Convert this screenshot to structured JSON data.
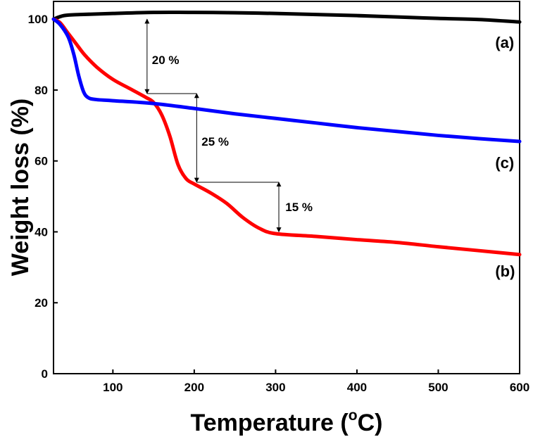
{
  "chart_data": {
    "type": "line",
    "title": "",
    "xlabel": "Temperature (",
    "xlabel_sup": "o",
    "xlabel_end": "C)",
    "ylabel": "Weight loss (%)",
    "xlim": [
      27,
      600
    ],
    "ylim": [
      0,
      105
    ],
    "xticks": [
      100,
      200,
      300,
      400,
      500,
      600
    ],
    "yticks": [
      0,
      20,
      40,
      60,
      80,
      100
    ],
    "series": [
      {
        "name": "(a)",
        "color": "#000000",
        "x": [
          27,
          40,
          60,
          100,
          150,
          200,
          250,
          300,
          350,
          400,
          450,
          500,
          550,
          600
        ],
        "y": [
          100,
          101,
          101.3,
          101.6,
          101.9,
          101.9,
          101.8,
          101.6,
          101.3,
          101.0,
          100.6,
          100.2,
          99.9,
          99.2
        ]
      },
      {
        "name": "(b)",
        "color": "#ff0000",
        "x": [
          27,
          35,
          45,
          55,
          65,
          80,
          100,
          120,
          140,
          150,
          160,
          170,
          180,
          190,
          200,
          220,
          240,
          260,
          280,
          300,
          350,
          400,
          450,
          500,
          550,
          600
        ],
        "y": [
          100,
          99,
          96,
          93,
          90,
          86.5,
          83,
          80.5,
          78,
          76.5,
          73,
          67,
          59,
          55,
          53.5,
          51,
          48,
          44,
          41,
          39.5,
          38.7,
          37.8,
          37,
          35.8,
          34.7,
          33.6
        ]
      },
      {
        "name": "(c)",
        "color": "#0000ff",
        "x": [
          27,
          35,
          45,
          52,
          58,
          64,
          70,
          80,
          100,
          150,
          200,
          250,
          300,
          350,
          400,
          450,
          500,
          550,
          600
        ],
        "y": [
          100,
          98.5,
          95,
          90,
          84,
          79.5,
          77.8,
          77.3,
          77,
          76.2,
          74.8,
          73.3,
          72,
          70.7,
          69.4,
          68.3,
          67.2,
          66.3,
          65.5
        ]
      }
    ],
    "curve_labels": [
      {
        "text": "(a)",
        "x": 570,
        "y": 93.5
      },
      {
        "text": "(b)",
        "x": 570,
        "y": 29
      },
      {
        "text": "(c)",
        "x": 570,
        "y": 59.5
      }
    ],
    "annotations": [
      {
        "label": "20 %",
        "x": 142,
        "y_top": 100,
        "y_bottom": 79,
        "label_x": 148,
        "label_y": 88.5
      },
      {
        "label": "25 %",
        "x": 203,
        "y_top": 79,
        "y_bottom": 54,
        "label_x": 209,
        "label_y": 65.5
      },
      {
        "label": "15 %",
        "x": 304,
        "y_top": 54,
        "y_bottom": 40,
        "label_x": 312,
        "label_y": 47
      }
    ],
    "guide_lines": [
      {
        "x1": 142,
        "x2": 203,
        "y": 79
      },
      {
        "x1": 203,
        "x2": 304,
        "y": 54
      }
    ]
  }
}
